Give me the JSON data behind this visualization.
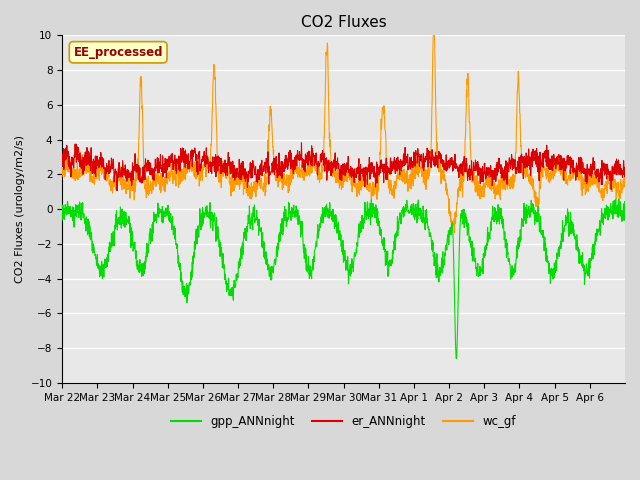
{
  "title": "CO2 Fluxes",
  "ylabel": "CO2 Fluxes (urology/m2/s)",
  "ylim": [
    -10,
    10
  ],
  "yticks": [
    -10,
    -8,
    -6,
    -4,
    -2,
    0,
    2,
    4,
    6,
    8,
    10
  ],
  "background_color": "#e8e8e8",
  "grid_color": "#ffffff",
  "line_colors": {
    "gpp": "#00dd00",
    "er": "#dd0000",
    "wc": "#ff9900"
  },
  "legend_labels": [
    "gpp_ANNnight",
    "er_ANNnight",
    "wc_gf"
  ],
  "watermark_text": "EE_processed",
  "watermark_bg": "#ffffcc",
  "watermark_border": "#cc9900",
  "n_points": 2000,
  "x_tick_labels": [
    "Mar 22",
    "Mar 23",
    "Mar 24",
    "Mar 25",
    "Mar 26",
    "Mar 27",
    "Mar 28",
    "Mar 29",
    "Mar 30",
    "Mar 31",
    "Apr 1",
    "Apr 2",
    "Apr 3",
    "Apr 4",
    "Apr 5",
    "Apr 6"
  ],
  "title_fontsize": 11,
  "label_fontsize": 8,
  "tick_fontsize": 7.5,
  "fig_width": 6.4,
  "fig_height": 4.8,
  "dpi": 100
}
